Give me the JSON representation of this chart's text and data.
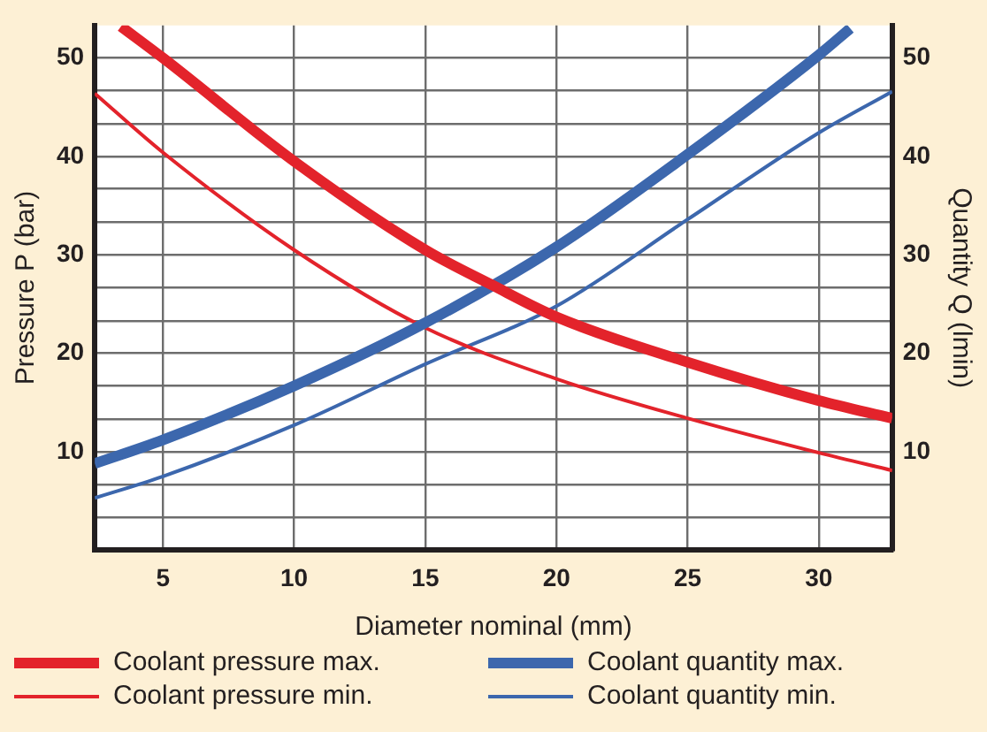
{
  "chart_data": {
    "type": "line",
    "xlabel": "Diameter nominal (mm)",
    "ylabel": "Pressure P (bar)",
    "y2label": "Quantity Q (lmin)",
    "xlim": [
      2.4,
      32.8
    ],
    "xticks": [
      5,
      10,
      15,
      20,
      25,
      30
    ],
    "ylim": [
      0,
      53.3
    ],
    "yticks": [
      {
        "value": 3.3,
        "label": null
      },
      {
        "value": 6.7,
        "label": null
      },
      10,
      {
        "value": 13.3,
        "label": null
      },
      {
        "value": 16.7,
        "label": null
      },
      20,
      {
        "value": 23.3,
        "label": null
      },
      {
        "value": 26.7,
        "label": null
      },
      30,
      {
        "value": 33.3,
        "label": null
      },
      {
        "value": 36.7,
        "label": null
      },
      40,
      {
        "value": 43.3,
        "label": null
      },
      {
        "value": 46.7,
        "label": null
      },
      50
    ],
    "y2lim": [
      0,
      53.3
    ],
    "y2ticks": [
      10,
      20,
      30,
      40,
      50
    ],
    "grid": true,
    "legend": "bottom",
    "marker": "none",
    "line_style": "solid",
    "series": [
      {
        "name": "Coolant pressure max.",
        "color": "#e3232b",
        "x": [
          3.4,
          5,
          10,
          15,
          17.5,
          20,
          25,
          30,
          32.8
        ],
        "values": [
          53.2,
          50,
          39.5,
          30.5,
          27,
          23.7,
          19.1,
          15.2,
          13.4
        ]
      },
      {
        "name": "Coolant quantity max.",
        "color": "#3c67ad",
        "axis": "y2",
        "x": [
          2.4,
          5,
          10,
          15,
          20,
          25,
          30,
          31.2
        ],
        "values": [
          8.8,
          11.2,
          16.7,
          23.1,
          30.8,
          40.2,
          50.3,
          53
        ]
      },
      {
        "name": "Coolant pressure min.",
        "color": "#e3232b",
        "x": [
          2.4,
          5,
          10,
          15,
          20,
          25,
          30,
          32.8
        ],
        "values": [
          46.4,
          40.4,
          30.5,
          22.6,
          17.4,
          13.4,
          9.9,
          8.1
        ]
      },
      {
        "name": "Coolant quantity min.",
        "color": "#3c67ad",
        "axis": "y2",
        "x": [
          2.4,
          5,
          10,
          15,
          20,
          25,
          30,
          32.8
        ],
        "values": [
          5.3,
          7.5,
          12.7,
          18.9,
          24.8,
          33.6,
          42.4,
          46.6
        ]
      }
    ]
  }
}
